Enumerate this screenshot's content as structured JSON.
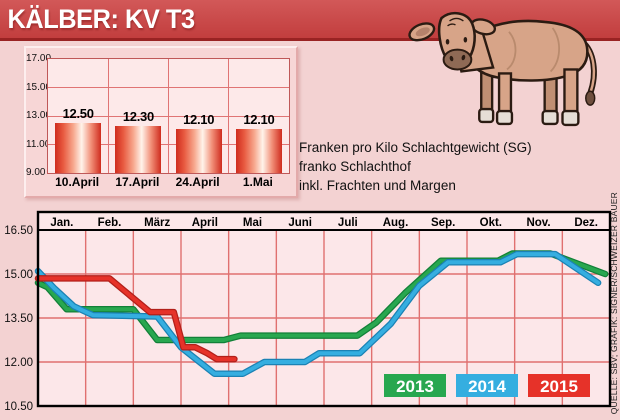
{
  "title_bar": {
    "title": "KÄLBER: KV T3"
  },
  "subtitle": {
    "lines": [
      "Franken pro Kilo Schlachtgewicht (SG)",
      "franko Schlachthof",
      "inkl. Frachten und Margen"
    ]
  },
  "source": {
    "text": "QUELLE: SBV; GRAFIK: SIGNER/SCHWEIZER BAUER"
  },
  "colors": {
    "banner_red": "#c23e3e",
    "page_pink": "#f3d2d2",
    "plot_pink": "#fce7e9",
    "grid_red": "#e07070",
    "series_2013": "#28a74f",
    "series_2014": "#35aee0",
    "series_2015": "#e63229"
  },
  "chart_data": [
    {
      "type": "bar",
      "title": "",
      "categories": [
        "10.April",
        "17.April",
        "24.April",
        "1.Mai"
      ],
      "values": [
        12.5,
        12.3,
        12.1,
        12.1
      ],
      "value_labels": [
        "12.50",
        "12.30",
        "12.10",
        "12.10"
      ],
      "yticks": [
        "17.00",
        "15.00",
        "13.00",
        "11.00",
        "9.00"
      ],
      "ylim": [
        9,
        17
      ],
      "ylabel": "Franken pro Kilo Schlachtgewicht",
      "grid": true
    },
    {
      "type": "line",
      "title": "",
      "categories": [
        "Jan.",
        "Feb.",
        "März",
        "April",
        "Mai",
        "Juni",
        "Juli",
        "Aug.",
        "Sep.",
        "Okt.",
        "Nov.",
        "Dez."
      ],
      "x_unit": "month fraction, 0 = start Jan, 12 = end Dez",
      "yticks": [
        "16.50",
        "15.00",
        "13.50",
        "12.00",
        "10.50"
      ],
      "ylim": [
        10.5,
        16.5
      ],
      "grid": true,
      "legend_position": "bottom-right inside plot",
      "series": [
        {
          "name": "2013",
          "color": "#28a74f",
          "edge": "#128038",
          "points": [
            [
              0,
              14.7
            ],
            [
              0.2,
              14.55
            ],
            [
              0.6,
              13.8
            ],
            [
              2.0,
              13.8
            ],
            [
              2.5,
              12.75
            ],
            [
              3.9,
              12.75
            ],
            [
              4.25,
              12.9
            ],
            [
              6.7,
              12.9
            ],
            [
              7.1,
              13.35
            ],
            [
              7.7,
              14.35
            ],
            [
              8.45,
              15.45
            ],
            [
              9.65,
              15.45
            ],
            [
              9.95,
              15.7
            ],
            [
              10.75,
              15.7
            ],
            [
              11.9,
              15.0
            ]
          ]
        },
        {
          "name": "2014",
          "color": "#35aee0",
          "edge": "#1b82b4",
          "points": [
            [
              0,
              15.1
            ],
            [
              0.35,
              14.5
            ],
            [
              0.75,
              13.9
            ],
            [
              1.15,
              13.6
            ],
            [
              2.5,
              13.55
            ],
            [
              3.0,
              12.5
            ],
            [
              3.7,
              11.6
            ],
            [
              4.3,
              11.6
            ],
            [
              4.75,
              12.0
            ],
            [
              5.6,
              12.0
            ],
            [
              5.9,
              12.3
            ],
            [
              6.75,
              12.3
            ],
            [
              7.4,
              13.3
            ],
            [
              8.0,
              14.6
            ],
            [
              8.6,
              15.4
            ],
            [
              9.7,
              15.4
            ],
            [
              10.05,
              15.68
            ],
            [
              10.85,
              15.68
            ],
            [
              11.75,
              14.7
            ]
          ]
        },
        {
          "name": "2015",
          "color": "#e63229",
          "edge": "#b2201a",
          "points": [
            [
              0,
              14.85
            ],
            [
              1.5,
              14.85
            ],
            [
              2.35,
              13.7
            ],
            [
              2.85,
              13.7
            ],
            [
              3.05,
              12.5
            ],
            [
              3.3,
              12.5
            ],
            [
              3.55,
              12.3
            ],
            [
              3.75,
              12.1
            ],
            [
              4.12,
              12.1
            ]
          ]
        }
      ]
    }
  ]
}
